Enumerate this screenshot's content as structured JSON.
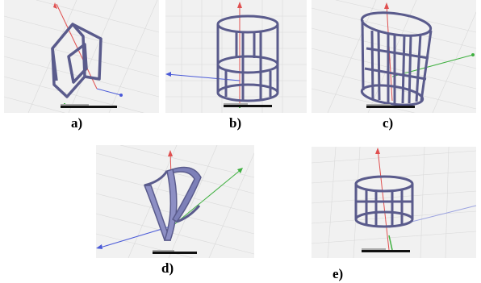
{
  "figure": {
    "panels": [
      {
        "id": "a",
        "label": "a)",
        "structure": "twisted-double-ring"
      },
      {
        "id": "b",
        "label": "b)",
        "structure": "split-ring-cylinder"
      },
      {
        "id": "c",
        "label": "c)",
        "structure": "tilted-multi-split-cylinder"
      },
      {
        "id": "d",
        "label": "d)",
        "structure": "curved-v-ribbon"
      },
      {
        "id": "e",
        "label": "e)",
        "structure": "small-split-cylinder"
      }
    ],
    "colors": {
      "structure": "#5a5b8c",
      "structure_fill": "#8d8fc4",
      "axis_x": "#e05050",
      "axis_y": "#3fb040",
      "axis_z": "#4a5ad8",
      "grid": "#d8d8d8",
      "background": "#f1f1f1"
    }
  }
}
